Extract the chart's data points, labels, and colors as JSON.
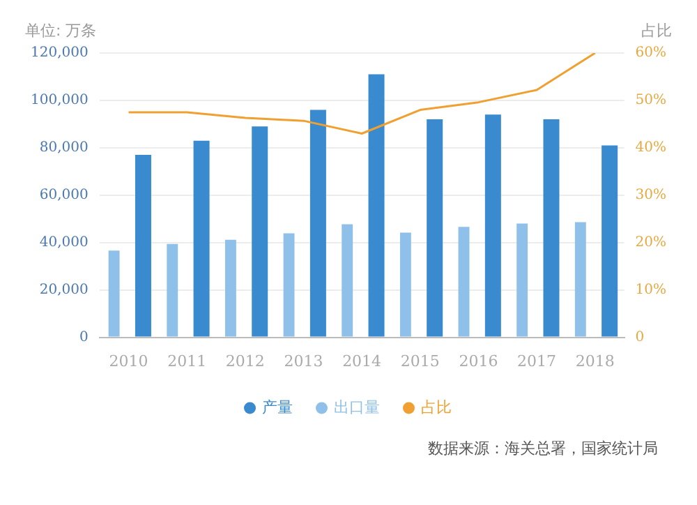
{
  "chart_data": {
    "type": "bar",
    "ylabel": "单位: 万条",
    "y2label": "占比",
    "categories": [
      "2010",
      "2011",
      "2012",
      "2013",
      "2014",
      "2015",
      "2016",
      "2017",
      "2018"
    ],
    "series": [
      {
        "name": "产量",
        "color": "#3a8ad0",
        "values": [
          77000,
          83000,
          89000,
          96000,
          111000,
          92000,
          94000,
          92000,
          81000
        ]
      },
      {
        "name": "出口量",
        "color": "#8ec0ea",
        "values": [
          36600,
          39400,
          41200,
          43900,
          47700,
          44200,
          46600,
          48000,
          48600
        ]
      },
      {
        "name": "占比",
        "type": "line",
        "axis": "y2",
        "color": "#f0a030",
        "values": [
          47.5,
          47.5,
          46.3,
          45.7,
          43,
          48,
          49.6,
          52.2,
          60
        ]
      }
    ],
    "ylim": [
      0,
      120000
    ],
    "yticks": [
      0,
      {
        "value": 20000,
        "label": "20,000"
      },
      {
        "value": 40000,
        "label": "40,000"
      },
      {
        "value": 60000,
        "label": "60,000"
      },
      {
        "value": 80000,
        "label": "80,000"
      },
      {
        "value": 100000,
        "label": "100,000"
      },
      {
        "value": 120000,
        "label": "120,000"
      }
    ],
    "y2lim": [
      0,
      60
    ],
    "y2ticks": [
      0,
      {
        "value": 10,
        "label": "10%"
      },
      {
        "value": 20,
        "label": "20%"
      },
      {
        "value": 30,
        "label": "30%"
      },
      {
        "value": 40,
        "label": "40%"
      },
      {
        "value": 50,
        "label": "50%"
      },
      {
        "value": 60,
        "label": "60%"
      }
    ],
    "grid": "y",
    "legend": "bottom",
    "marker": "none",
    "annotations": [
      "数据来源：海关总署，国家统计局"
    ]
  }
}
